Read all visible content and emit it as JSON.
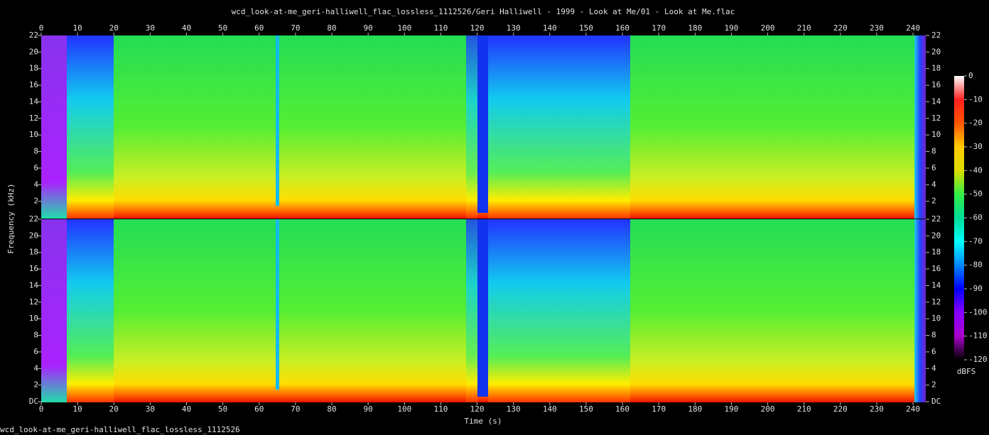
{
  "chart_data": {
    "type": "spectrogram",
    "title": "wcd_look-at-me_geri-halliwell_flac_lossless_1112526/Geri Halliwell - 1999 - Look at Me/01 - Look at Me.flac",
    "subtitle": "wcd_look-at-me_geri-halliwell_flac_lossless_1112526",
    "xlabel": "Time (s)",
    "ylabel": "Frequency (kHz)",
    "xlim": [
      0,
      243.5
    ],
    "xticks": [
      0,
      10,
      20,
      30,
      40,
      50,
      60,
      70,
      80,
      90,
      100,
      110,
      120,
      130,
      140,
      150,
      160,
      170,
      180,
      190,
      200,
      210,
      220,
      230,
      240
    ],
    "channels": [
      {
        "ylim": [
          0,
          22
        ],
        "yticks": [
          2,
          4,
          6,
          8,
          10,
          12,
          14,
          16,
          18,
          20,
          22
        ]
      },
      {
        "ylim": [
          0,
          22
        ],
        "yticks": [
          {
            "value": 0,
            "label": "DC"
          },
          2,
          4,
          6,
          8,
          10,
          12,
          14,
          16,
          18,
          20,
          22
        ]
      }
    ],
    "colorbar": {
      "label": "dBFS",
      "lim": [
        -120,
        0
      ],
      "ticks": [
        0,
        -10,
        -20,
        -30,
        -40,
        -50,
        -60,
        -70,
        -80,
        -90,
        -100,
        -110,
        -120
      ],
      "colors": [
        "#ffffff",
        "#ff2020",
        "#ff5500",
        "#ffcc00",
        "#dddd00",
        "#33ee44",
        "#00dd99",
        "#00ffff",
        "#0088ff",
        "#0000ff",
        "#8800ff",
        "#aa00cc",
        "#000000"
      ]
    }
  }
}
